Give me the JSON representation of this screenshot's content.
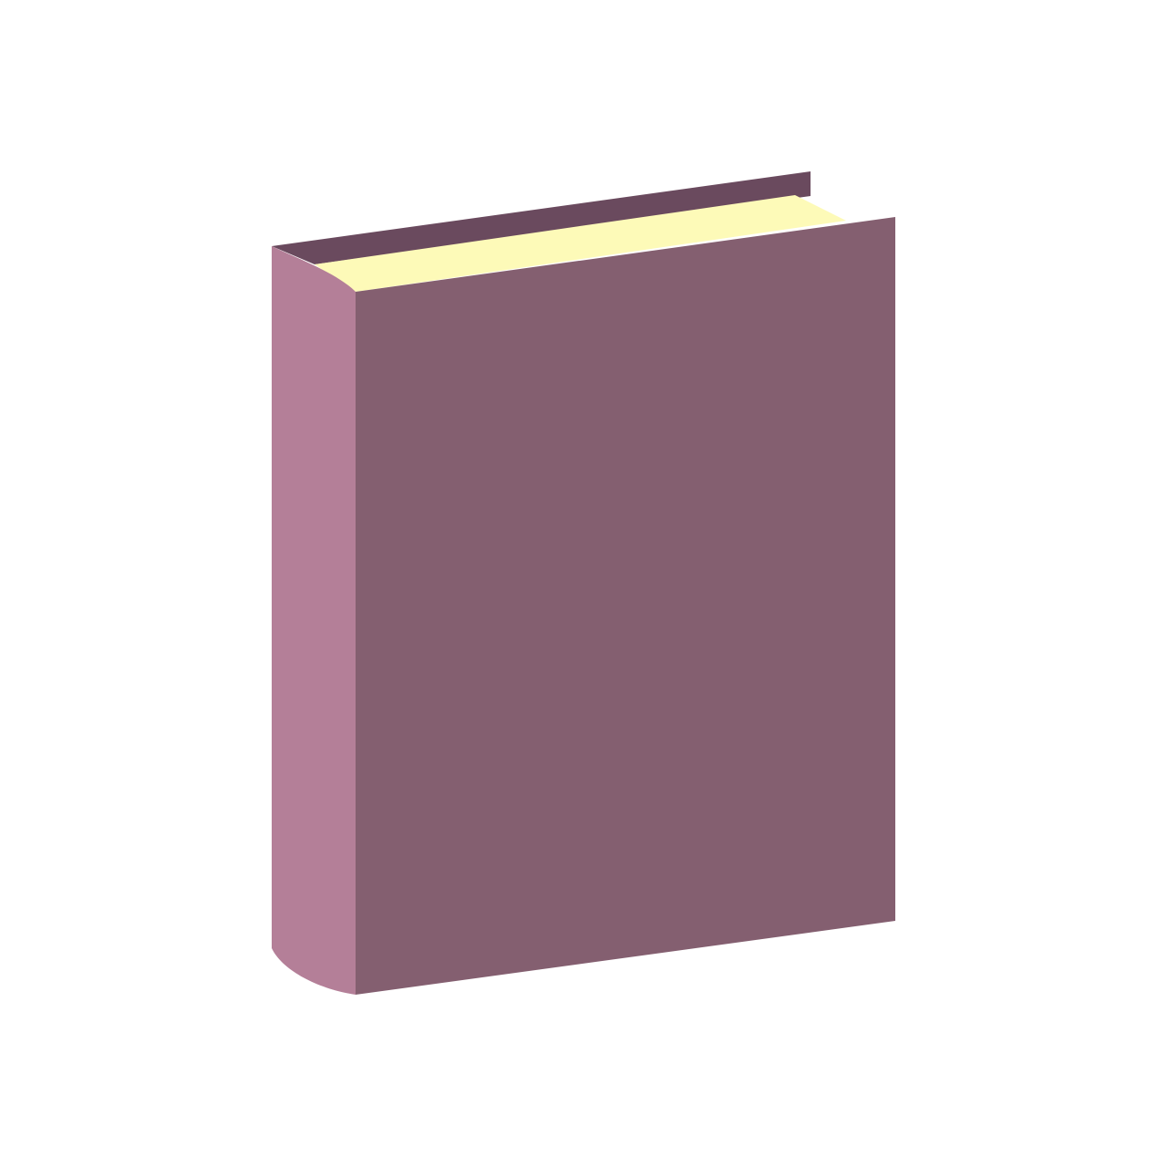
{
  "scene": {
    "subject": "book-icon",
    "background_color": "#ffffff",
    "colors": {
      "back_cover": "#6a4a5e",
      "pages": "#fdfab8",
      "page_shadow": "#d8d5a0",
      "spine": "#b47f98",
      "front_cover": "#845f70"
    }
  }
}
